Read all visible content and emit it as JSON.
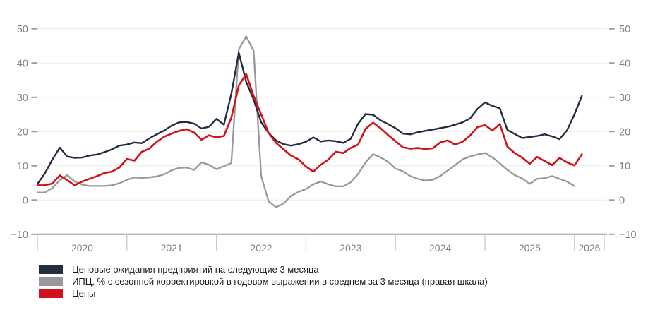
{
  "chart_data": {
    "type": "line",
    "title": "",
    "x_start": "2020-01",
    "x_frequency": "monthly",
    "x_tick_labels": [
      "2020",
      "2021",
      "2022",
      "2023",
      "2024",
      "2025",
      "2026"
    ],
    "y_ticks_left": [
      -10,
      0,
      10,
      20,
      30,
      40,
      50
    ],
    "y_ticks_right": [
      -10,
      0,
      10,
      20,
      30,
      40,
      50
    ],
    "ylim": [
      -10,
      50
    ],
    "grid": true,
    "legend_position": "bottom-left",
    "series": [
      {
        "name": "Ценовые ожидания предприятий на следующие 3 месяца",
        "color": "#222d3e",
        "axis": "left",
        "values": [
          4.7,
          7.8,
          11.8,
          15.3,
          12.7,
          12.3,
          12.4,
          13.0,
          13.3,
          14.0,
          14.8,
          15.9,
          16.2,
          16.8,
          16.6,
          18.0,
          19.2,
          20.3,
          21.7,
          22.7,
          22.8,
          22.3,
          20.9,
          21.4,
          23.7,
          22.0,
          31.0,
          43.0,
          34.5,
          29.3,
          22.7,
          19.6,
          17.4,
          16.3,
          15.9,
          16.3,
          17.0,
          18.3,
          17.1,
          17.4,
          17.2,
          16.7,
          17.9,
          22.3,
          25.1,
          24.9,
          23.3,
          22.2,
          21.0,
          19.4,
          19.2,
          19.8,
          20.2,
          20.6,
          21.0,
          21.4,
          22.0,
          22.7,
          23.8,
          26.6,
          28.5,
          27.5,
          26.8,
          20.5,
          19.3,
          18.1,
          18.4,
          18.7,
          19.2,
          18.6,
          17.8,
          20.3,
          25.0,
          30.4
        ]
      },
      {
        "name": "ИПЦ, % с сезонной корректировкой в годовом выражении в среднем за 3 месяца (правая шкала)",
        "color": "#98989a",
        "axis": "right",
        "values": [
          2.2,
          2.2,
          3.5,
          5.8,
          7.3,
          5.4,
          4.5,
          4.1,
          4.1,
          4.1,
          4.3,
          4.9,
          5.9,
          6.6,
          6.5,
          6.6,
          6.9,
          7.5,
          8.7,
          9.4,
          9.5,
          8.8,
          11.0,
          10.3,
          9.0,
          9.9,
          10.8,
          44.0,
          47.8,
          43.5,
          7.0,
          -0.4,
          -2.1,
          -1.0,
          1.2,
          2.4,
          3.2,
          4.6,
          5.4,
          4.6,
          4.0,
          4.0,
          5.2,
          7.6,
          11.0,
          13.4,
          12.5,
          11.2,
          9.2,
          8.4,
          7.0,
          6.2,
          5.7,
          5.9,
          7.0,
          8.6,
          10.2,
          11.9,
          12.7,
          13.3,
          13.7,
          12.5,
          10.7,
          8.8,
          7.3,
          6.3,
          4.7,
          6.2,
          6.4,
          7.0,
          6.2,
          5.4,
          4.1
        ]
      },
      {
        "name": "Цены",
        "color": "#d2121a",
        "axis": "left",
        "values": [
          4.3,
          4.3,
          4.8,
          7.2,
          5.8,
          4.3,
          5.4,
          6.2,
          7.0,
          7.9,
          8.3,
          9.5,
          12.0,
          11.5,
          14.1,
          15.0,
          17.0,
          18.5,
          19.4,
          20.2,
          20.7,
          19.7,
          17.6,
          18.9,
          18.3,
          18.7,
          24.0,
          33.5,
          36.8,
          30.3,
          25.0,
          19.6,
          16.7,
          14.8,
          13.0,
          11.9,
          9.8,
          8.3,
          10.3,
          11.8,
          14.1,
          13.7,
          15.2,
          16.2,
          20.8,
          22.6,
          21.0,
          19.0,
          17.2,
          15.4,
          15.0,
          15.2,
          14.9,
          15.1,
          16.8,
          17.4,
          16.2,
          17.0,
          18.8,
          21.3,
          21.9,
          20.3,
          22.2,
          15.6,
          13.7,
          12.4,
          10.6,
          12.6,
          11.4,
          10.2,
          12.3,
          11.0,
          10.1,
          13.4
        ]
      }
    ]
  },
  "style_colors": {
    "gridline": "#ebebeb",
    "axis_line": "#9b9b9b",
    "x_tick_line": "#c9c9c9",
    "axis_text": "#7f8184",
    "legend_text": "#1a1a1a"
  }
}
